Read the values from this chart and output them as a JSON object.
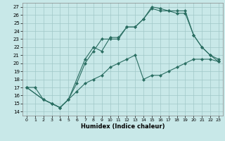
{
  "xlabel": "Humidex (Indice chaleur)",
  "xlim": [
    -0.5,
    23.5
  ],
  "ylim": [
    13.5,
    27.5
  ],
  "xticks": [
    0,
    1,
    2,
    3,
    4,
    5,
    6,
    7,
    8,
    9,
    10,
    11,
    12,
    13,
    14,
    15,
    16,
    17,
    18,
    19,
    20,
    21,
    22,
    23
  ],
  "yticks": [
    14,
    15,
    16,
    17,
    18,
    19,
    20,
    21,
    22,
    23,
    24,
    25,
    26,
    27
  ],
  "bg_color": "#c8e8e8",
  "grid_color": "#a0c8c8",
  "line_color": "#2a6e62",
  "line1_x": [
    0,
    1,
    2,
    3,
    4,
    5,
    6,
    7,
    8,
    9,
    10,
    11,
    12,
    13,
    14,
    15,
    16,
    17,
    18,
    19,
    20,
    21,
    22,
    23
  ],
  "line1_y": [
    17,
    17,
    15.5,
    15,
    14.5,
    15.5,
    17.5,
    20,
    21.5,
    23,
    23,
    23,
    24.5,
    24.5,
    25.5,
    26.8,
    26.5,
    26.5,
    26.2,
    26.2,
    23.5,
    22,
    21,
    20.5
  ],
  "line2_x": [
    0,
    2,
    3,
    4,
    5,
    7,
    8,
    9,
    10,
    11,
    12,
    13,
    14,
    15,
    16,
    17,
    18,
    19,
    20,
    21,
    22,
    23
  ],
  "line2_y": [
    17,
    15.5,
    15,
    14.5,
    15.5,
    20.5,
    22,
    21.5,
    23.2,
    23.2,
    24.5,
    24.5,
    25.5,
    27,
    26.8,
    26.5,
    26.5,
    26.5,
    23.5,
    22,
    21,
    20.2
  ],
  "line3_x": [
    0,
    2,
    3,
    4,
    5,
    6,
    7,
    8,
    9,
    10,
    11,
    12,
    13,
    14,
    15,
    16,
    17,
    18,
    19,
    20,
    21,
    22,
    23
  ],
  "line3_y": [
    17,
    15.5,
    15,
    14.5,
    15.5,
    16.5,
    17.5,
    18.0,
    18.5,
    19.5,
    20,
    20.5,
    21,
    18.0,
    18.5,
    18.5,
    19,
    19.5,
    20,
    20.5,
    20.5,
    20.5,
    20.2
  ]
}
